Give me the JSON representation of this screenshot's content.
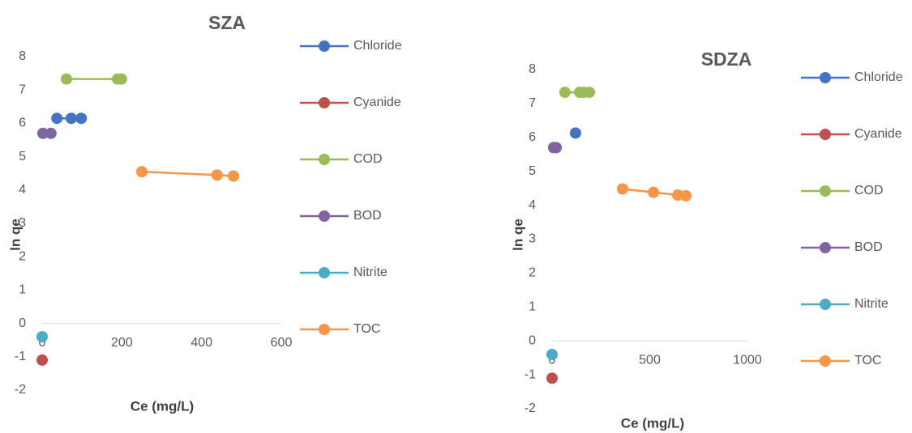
{
  "chart_data": [
    {
      "type": "line",
      "title": "SZA",
      "x_label": "Ce (mg/L)",
      "y_label": "ln qe",
      "xlim": [
        0,
        600
      ],
      "xticks": [
        0,
        200,
        400,
        600
      ],
      "ylim": [
        -2,
        8
      ],
      "yticks": [
        -2,
        -1,
        0,
        1,
        2,
        3,
        4,
        5,
        6,
        7,
        8
      ],
      "series": [
        {
          "name": "Chloride",
          "color": "#4472c4",
          "x": [
            37,
            73,
            98
          ],
          "values": [
            6.15,
            6.15,
            6.15
          ]
        },
        {
          "name": "Cyanide",
          "color": "#c0504d",
          "x": [
            0
          ],
          "values": [
            -1.1
          ]
        },
        {
          "name": "COD",
          "color": "#9bbb59",
          "x": [
            61,
            189,
            199
          ],
          "values": [
            7.33,
            7.33,
            7.33
          ]
        },
        {
          "name": "BOD",
          "color": "#8064a2",
          "x": [
            2,
            22
          ],
          "values": [
            5.7,
            5.7
          ]
        },
        {
          "name": "Nitrite",
          "color": "#4bacc6",
          "x": [
            0
          ],
          "values": [
            -0.4
          ]
        },
        {
          "name": "TOC",
          "color": "#f79646",
          "x": [
            250,
            439,
            480
          ],
          "values": [
            4.55,
            4.45,
            4.42
          ]
        }
      ]
    },
    {
      "type": "line",
      "title": "SDZA",
      "x_label": "Ce (mg/L)",
      "y_label": "ln qe",
      "xlim": [
        0,
        1000
      ],
      "xticks": [
        0,
        500,
        1000
      ],
      "ylim": [
        -2,
        8
      ],
      "yticks": [
        -2,
        -1,
        0,
        1,
        2,
        3,
        4,
        5,
        6,
        7,
        8
      ],
      "series": [
        {
          "name": "Chloride",
          "color": "#4472c4",
          "x": [
            120
          ],
          "values": [
            6.13
          ]
        },
        {
          "name": "Cyanide",
          "color": "#c0504d",
          "x": [
            0
          ],
          "values": [
            -1.1
          ]
        },
        {
          "name": "COD",
          "color": "#9bbb59",
          "x": [
            66,
            141,
            162,
            191
          ],
          "values": [
            7.33,
            7.33,
            7.33,
            7.33
          ]
        },
        {
          "name": "BOD",
          "color": "#8064a2",
          "x": [
            8,
            21
          ],
          "values": [
            5.7,
            5.7
          ]
        },
        {
          "name": "Nitrite",
          "color": "#4bacc6",
          "x": [
            0
          ],
          "values": [
            -0.4
          ]
        },
        {
          "name": "TOC",
          "color": "#f79646",
          "x": [
            361,
            519,
            643,
            685
          ],
          "values": [
            4.48,
            4.38,
            4.3,
            4.28
          ]
        }
      ]
    }
  ]
}
